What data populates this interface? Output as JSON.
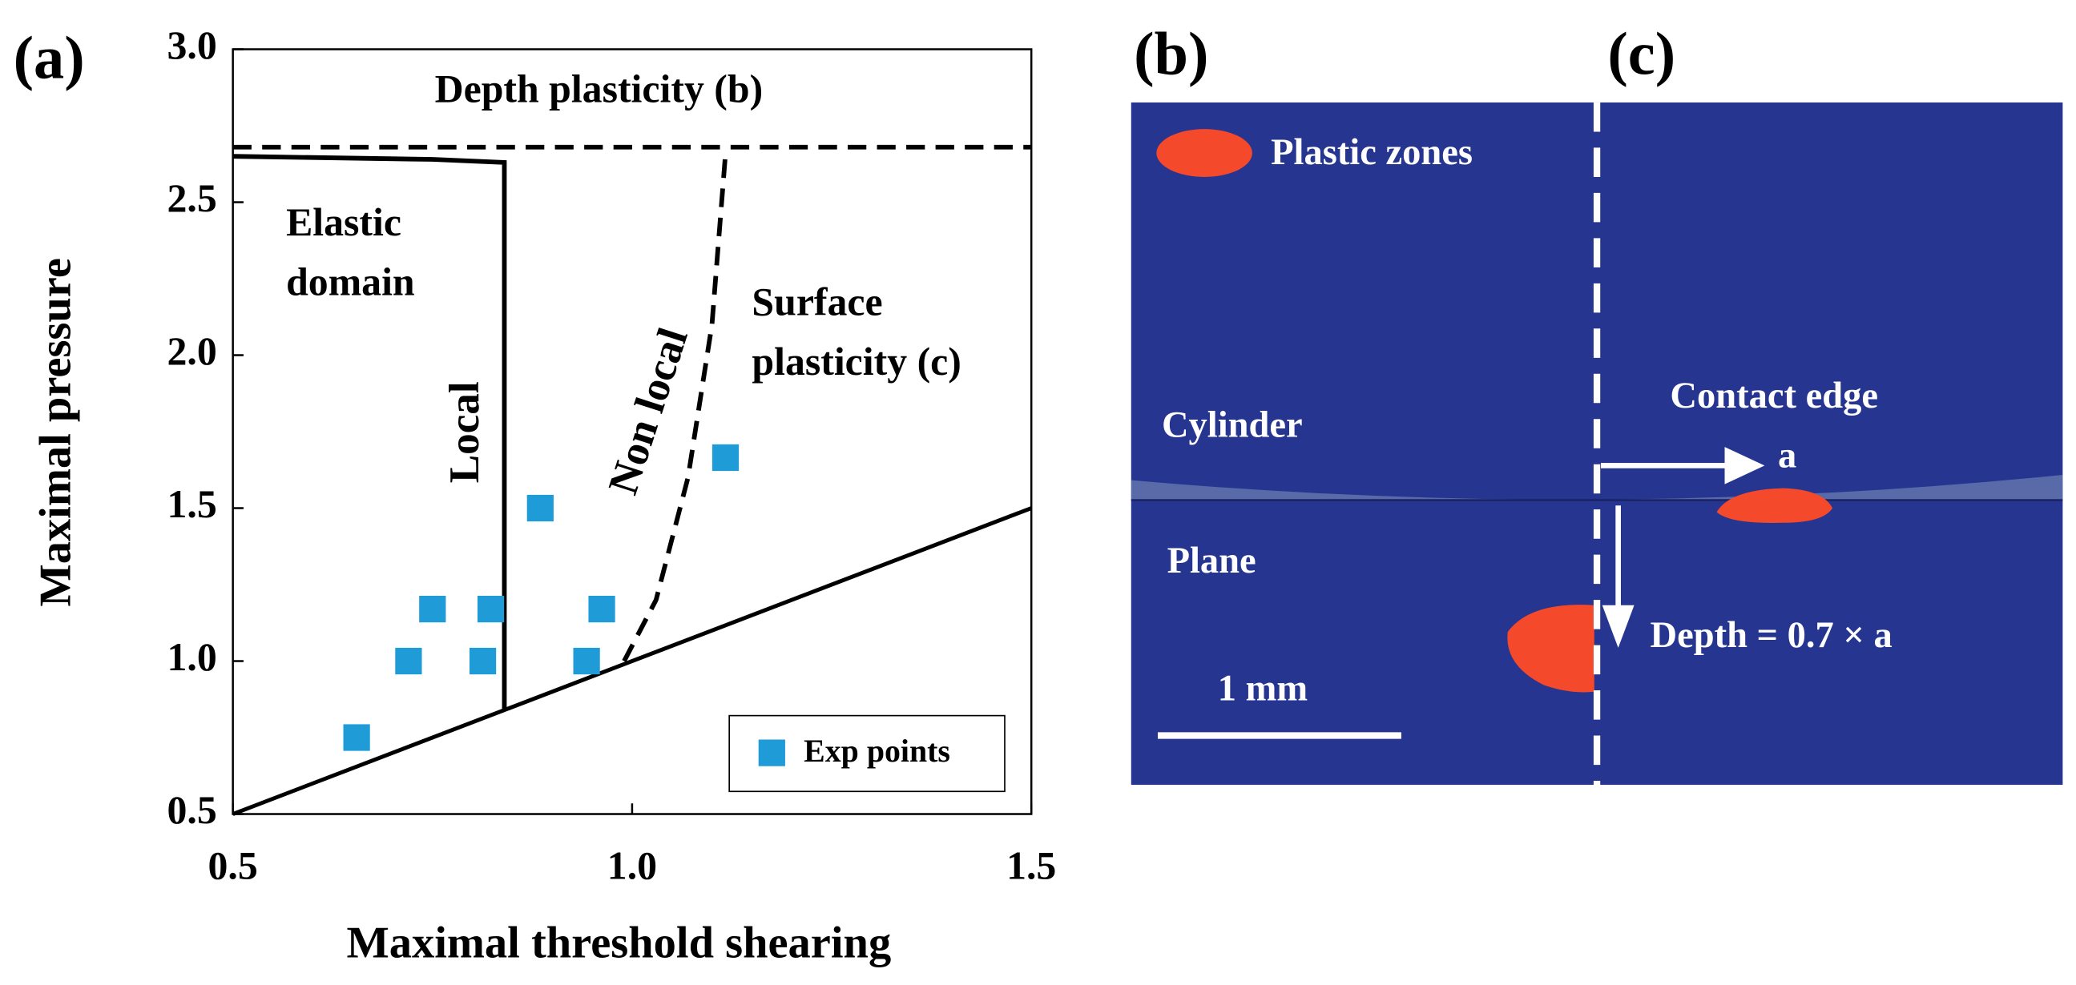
{
  "chart_data": {
    "type": "scatter",
    "panel_label": "(a)",
    "xlabel": "Maximal threshold shearing",
    "ylabel": "Maximal pressure",
    "xlim": [
      0.5,
      1.5
    ],
    "xticks": [
      0.5,
      {
        "value": 1,
        "label": "1.0"
      },
      1.5
    ],
    "ylim": [
      0.5,
      3
    ],
    "yticks": [
      0.5,
      {
        "value": 1,
        "label": "1.0"
      },
      1.5,
      {
        "value": 2,
        "label": "2.0"
      },
      2.5,
      {
        "value": 3,
        "label": "3.0"
      }
    ],
    "legend": "lower right",
    "series": [
      {
        "name": "Exp points",
        "color": "#1f9bd7",
        "marker": "square",
        "x": [
          0.655,
          0.72,
          0.75,
          0.813,
          0.823,
          0.885,
          0.943,
          0.962,
          1.117
        ],
        "values": [
          0.75,
          1.0,
          1.17,
          1.0,
          1.17,
          1.5,
          1.0,
          1.17,
          1.665
        ]
      }
    ],
    "lines": [
      {
        "style": "solid",
        "x": [
          0.5,
          1.5
        ],
        "values": [
          0.5,
          1.5
        ]
      },
      {
        "style": "solid",
        "x": [
          0.5,
          0.75,
          0.84,
          0.84
        ],
        "values": [
          2.65,
          2.64,
          2.63,
          0.84
        ]
      },
      {
        "style": "dashed",
        "x": [
          0.5,
          1.5
        ],
        "values": [
          2.68,
          2.68
        ]
      },
      {
        "style": "dashed",
        "x": [
          0.99,
          1.03,
          1.07,
          1.1,
          1.117
        ],
        "values": [
          1.0,
          1.2,
          1.6,
          2.1,
          2.66
        ]
      }
    ],
    "annotations": [
      "Depth plasticity (b)",
      [
        "Elastic",
        "domain"
      ],
      "Local",
      "Non local",
      [
        "Surface",
        "plasticity (c)"
      ]
    ]
  },
  "diagram": {
    "panel_b": "(b)",
    "panel_c": "(c)",
    "legend": "Plastic zones",
    "cylinder": "Cylinder",
    "plane": "Plane",
    "contact_edge": "Contact edge",
    "a": "a",
    "depth": "Depth = 0.7 × a",
    "scale": "1 mm"
  }
}
